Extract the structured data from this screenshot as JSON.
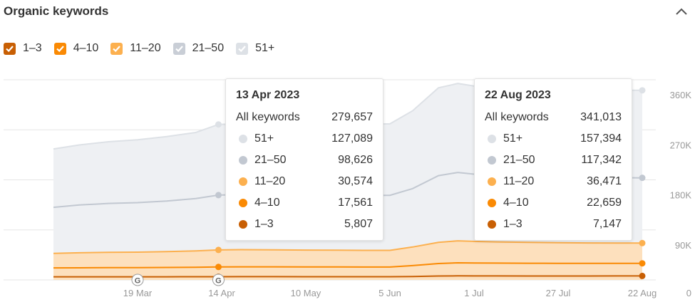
{
  "header": {
    "title": "Organic keywords"
  },
  "colors": {
    "pos_1_3": "#c85f04",
    "pos_4_10": "#fa8a04",
    "pos_11_20": "#fcb04f",
    "pos_21_50": "#c2c8d1",
    "pos_51_plus": "#dde1e6",
    "area_gray": "#eef0f3",
    "area_orange": "#fde0bd",
    "grid": "#e6e6e6",
    "axis_text": "#999999"
  },
  "legend": [
    {
      "label": "1–3",
      "checked": true,
      "color": "#c85f04"
    },
    {
      "label": "4–10",
      "checked": true,
      "color": "#fa8a04"
    },
    {
      "label": "11–20",
      "checked": true,
      "color": "#fcb04f"
    },
    {
      "label": "21–50",
      "checked": false,
      "color": "#c9ced6"
    },
    {
      "label": "51+",
      "checked": false,
      "color": "#dde1e6"
    }
  ],
  "chart_data": {
    "type": "area",
    "stacked": true,
    "title": "Organic keywords",
    "x_ticks": [
      "19 Mar",
      "14 Apr",
      "10 May",
      "5 Jun",
      "1 Jul",
      "27 Jul",
      "22 Aug"
    ],
    "y_ticks": [
      "0",
      "90K",
      "180K",
      "270K",
      "360K"
    ],
    "ylim": [
      0,
      360000
    ],
    "grid": true,
    "x": [
      "2023-02-21",
      "2023-03-01",
      "2023-03-10",
      "2023-03-19",
      "2023-03-28",
      "2023-04-06",
      "2023-04-13",
      "2023-04-20",
      "2023-04-30",
      "2023-05-10",
      "2023-05-20",
      "2023-05-30",
      "2023-06-05",
      "2023-06-12",
      "2023-06-20",
      "2023-06-26",
      "2023-07-01",
      "2023-07-08",
      "2023-07-18",
      "2023-07-27",
      "2023-08-05",
      "2023-08-14",
      "2023-08-22"
    ],
    "series": [
      {
        "name": "1–3",
        "values": [
          5600,
          5600,
          5650,
          5650,
          5700,
          5750,
          5807,
          5850,
          5850,
          5800,
          5800,
          5750,
          5750,
          6200,
          7000,
          7300,
          7200,
          7150,
          7100,
          7100,
          7100,
          7120,
          7147
        ]
      },
      {
        "name": "4–10",
        "values": [
          16000,
          16200,
          16400,
          16500,
          16700,
          17000,
          17561,
          17700,
          17700,
          17600,
          17500,
          17400,
          17400,
          19500,
          22500,
          23500,
          23300,
          23100,
          22900,
          22800,
          22700,
          22680,
          22659
        ]
      },
      {
        "name": "11–20",
        "values": [
          26000,
          27000,
          27500,
          27800,
          28500,
          29500,
          30574,
          30900,
          30600,
          30300,
          30100,
          30000,
          30000,
          33500,
          38000,
          39500,
          38800,
          38200,
          37500,
          37000,
          36700,
          36600,
          36471
        ]
      },
      {
        "name": "21–50",
        "values": [
          83000,
          86000,
          88000,
          89000,
          91000,
          94000,
          98626,
          99000,
          99000,
          99000,
          99000,
          99000,
          99000,
          105000,
          120000,
          123000,
          121000,
          120000,
          119000,
          118000,
          117800,
          117500,
          117342
        ]
      },
      {
        "name": "51+",
        "values": [
          105000,
          108000,
          111000,
          113000,
          116000,
          119000,
          127089,
          127500,
          128000,
          128000,
          128000,
          128000,
          128500,
          140000,
          158000,
          160000,
          158500,
          158000,
          157800,
          157600,
          157500,
          157450,
          157394
        ]
      }
    ],
    "annotations": [
      {
        "x": "2023-03-19",
        "label": "G"
      },
      {
        "x": "2023-04-13",
        "label": "G"
      }
    ]
  },
  "tooltips": [
    {
      "date": "13 Apr 2023",
      "total_label": "All keywords",
      "total": "279,657",
      "rows": [
        {
          "label": "51+",
          "value": "127,089",
          "color": "#dde1e6"
        },
        {
          "label": "21–50",
          "value": "98,626",
          "color": "#c2c8d1"
        },
        {
          "label": "11–20",
          "value": "30,574",
          "color": "#fcb04f"
        },
        {
          "label": "4–10",
          "value": "17,561",
          "color": "#fa8a04"
        },
        {
          "label": "1–3",
          "value": "5,807",
          "color": "#c85f04"
        }
      ]
    },
    {
      "date": "22 Aug 2023",
      "total_label": "All keywords",
      "total": "341,013",
      "rows": [
        {
          "label": "51+",
          "value": "157,394",
          "color": "#dde1e6"
        },
        {
          "label": "21–50",
          "value": "117,342",
          "color": "#c2c8d1"
        },
        {
          "label": "11–20",
          "value": "36,471",
          "color": "#fcb04f"
        },
        {
          "label": "4–10",
          "value": "22,659",
          "color": "#fa8a04"
        },
        {
          "label": "1–3",
          "value": "7,147",
          "color": "#c85f04"
        }
      ]
    }
  ]
}
